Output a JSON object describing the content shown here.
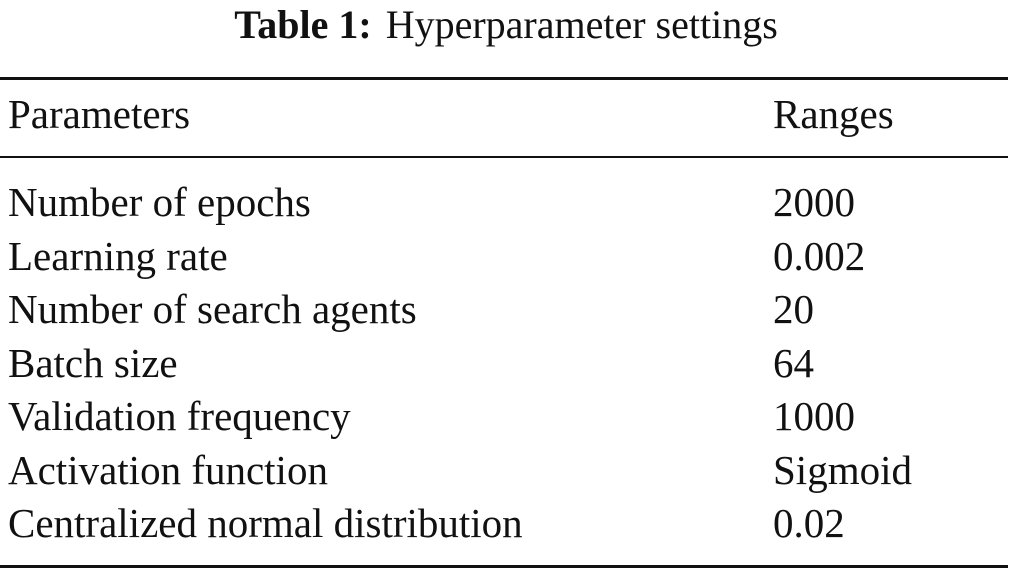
{
  "caption": {
    "label": "Table 1:",
    "title": "Hyperparameter settings"
  },
  "table": {
    "header": [
      "Parameters",
      "Ranges"
    ],
    "rows": [
      [
        "Number of epochs",
        "2000"
      ],
      [
        "Learning rate",
        "0.002"
      ],
      [
        "Number of search agents",
        "20"
      ],
      [
        "Batch size",
        "64"
      ],
      [
        "Validation frequency",
        "1000"
      ],
      [
        "Activation function",
        "Sigmoid"
      ],
      [
        "Centralized normal distribution",
        "0.02"
      ]
    ]
  }
}
